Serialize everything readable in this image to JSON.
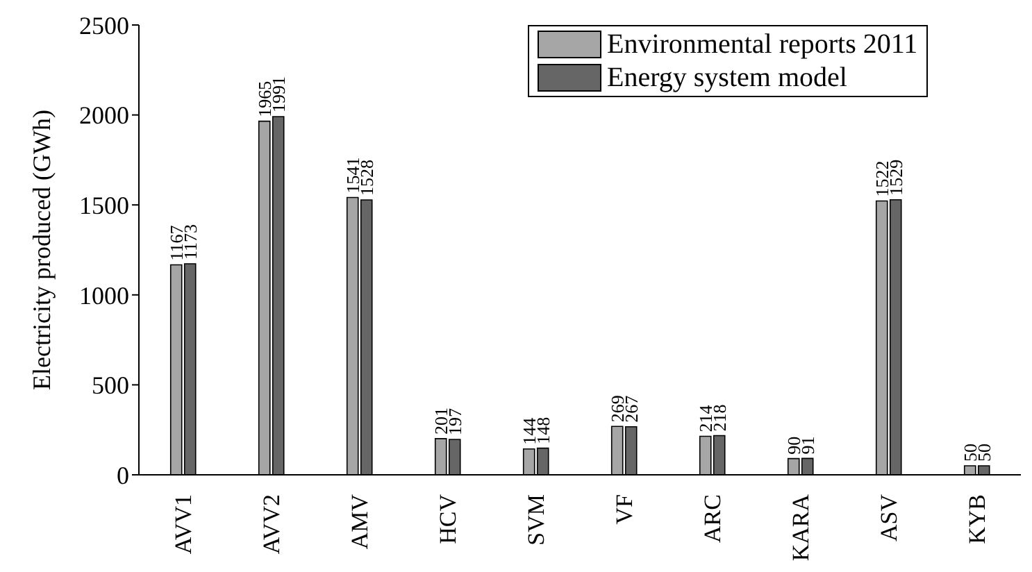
{
  "chart_data": {
    "type": "bar",
    "ylabel": "Electricity produced (GWh)",
    "categories": [
      "AVV1",
      "AVV2",
      "AMV",
      "HCV",
      "SVM",
      "VF",
      "ARC",
      "KARA",
      "ASV",
      "KYB"
    ],
    "series": [
      {
        "name": "Environmental reports 2011",
        "color": "#a6a6a6",
        "values": [
          1167,
          1965,
          1541,
          201,
          144,
          269,
          214,
          90,
          1522,
          50
        ]
      },
      {
        "name": "Energy system model",
        "color": "#666666",
        "values": [
          1173,
          1991,
          1528,
          197,
          148,
          267,
          218,
          91,
          1529,
          50
        ]
      }
    ],
    "ylim": [
      0,
      2500
    ],
    "yticks": [
      0,
      500,
      1000,
      1500,
      2000,
      2500
    ],
    "grid": false,
    "legend": "top right",
    "data_labels": true
  }
}
